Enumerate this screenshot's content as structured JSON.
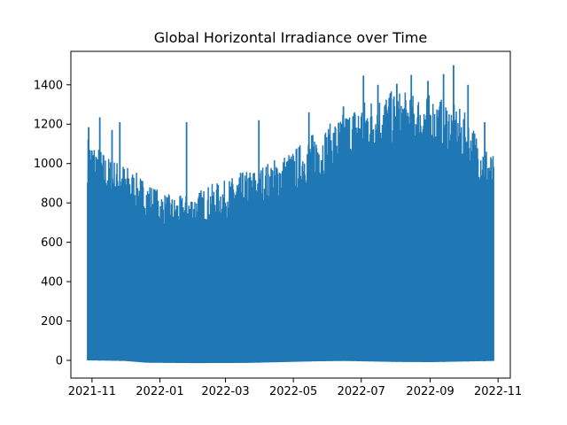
{
  "chart_data": {
    "type": "line",
    "title": "Global Horizontal Irradiance over Time",
    "xlabel": "",
    "ylabel": "",
    "xlim": [
      "2021-10-13",
      "2022-11-12"
    ],
    "ylim": [
      -90,
      1570
    ],
    "x_ticks": [
      "2021-11",
      "2022-01",
      "2022-03",
      "2022-05",
      "2022-07",
      "2022-09",
      "2022-11"
    ],
    "y_ticks": [
      0,
      200,
      400,
      600,
      800,
      1000,
      1200,
      1400
    ],
    "grid": false,
    "legend": "none",
    "color": "#1f77b4",
    "series": [
      {
        "x_start": "2021-10-28",
        "x_end": "2022-10-28",
        "baseline": [
          [
            "2021-10-28",
            0
          ],
          [
            "2021-12-01",
            -3
          ],
          [
            "2021-12-20",
            -12
          ],
          [
            "2022-02-01",
            -14
          ],
          [
            "2022-03-20",
            -13
          ],
          [
            "2022-04-20",
            -9
          ],
          [
            "2022-05-20",
            -5
          ],
          [
            "2022-06-15",
            -3
          ],
          [
            "2022-08-01",
            -8
          ],
          [
            "2022-09-01",
            -9
          ],
          [
            "2022-10-28",
            -3
          ]
        ],
        "envelope": [
          [
            "2021-10-28",
            1100
          ],
          [
            "2021-11-01",
            1080
          ],
          [
            "2021-11-15",
            1000
          ],
          [
            "2021-12-01",
            960
          ],
          [
            "2021-12-15",
            900
          ],
          [
            "2022-01-01",
            830
          ],
          [
            "2022-01-15",
            800
          ],
          [
            "2022-02-01",
            820
          ],
          [
            "2022-02-15",
            860
          ],
          [
            "2022-03-01",
            880
          ],
          [
            "2022-03-15",
            920
          ],
          [
            "2022-04-01",
            950
          ],
          [
            "2022-04-15",
            990
          ],
          [
            "2022-05-01",
            1030
          ],
          [
            "2022-05-15",
            1100
          ],
          [
            "2022-06-01",
            1150
          ],
          [
            "2022-06-15",
            1210
          ],
          [
            "2022-07-01",
            1270
          ],
          [
            "2022-07-15",
            1300
          ],
          [
            "2022-08-01",
            1320
          ],
          [
            "2022-08-15",
            1310
          ],
          [
            "2022-09-01",
            1300
          ],
          [
            "2022-09-15",
            1280
          ],
          [
            "2022-10-01",
            1220
          ],
          [
            "2022-10-15",
            1100
          ],
          [
            "2022-10-28",
            1000
          ]
        ],
        "spikes": [
          [
            "2021-10-29",
            1185
          ],
          [
            "2021-11-08",
            1235
          ],
          [
            "2021-11-19",
            1170
          ],
          [
            "2021-11-26",
            1210
          ],
          [
            "2022-01-25",
            1210
          ],
          [
            "2022-03-31",
            1220
          ],
          [
            "2022-05-15",
            1260
          ],
          [
            "2022-06-15",
            1290
          ],
          [
            "2022-07-03",
            1447
          ],
          [
            "2022-07-16",
            1400
          ],
          [
            "2022-08-02",
            1405
          ],
          [
            "2022-08-15",
            1450
          ],
          [
            "2022-08-30",
            1420
          ],
          [
            "2022-09-13",
            1455
          ],
          [
            "2022-09-22",
            1500
          ],
          [
            "2022-10-05",
            1400
          ],
          [
            "2022-10-20",
            1210
          ]
        ]
      }
    ]
  }
}
